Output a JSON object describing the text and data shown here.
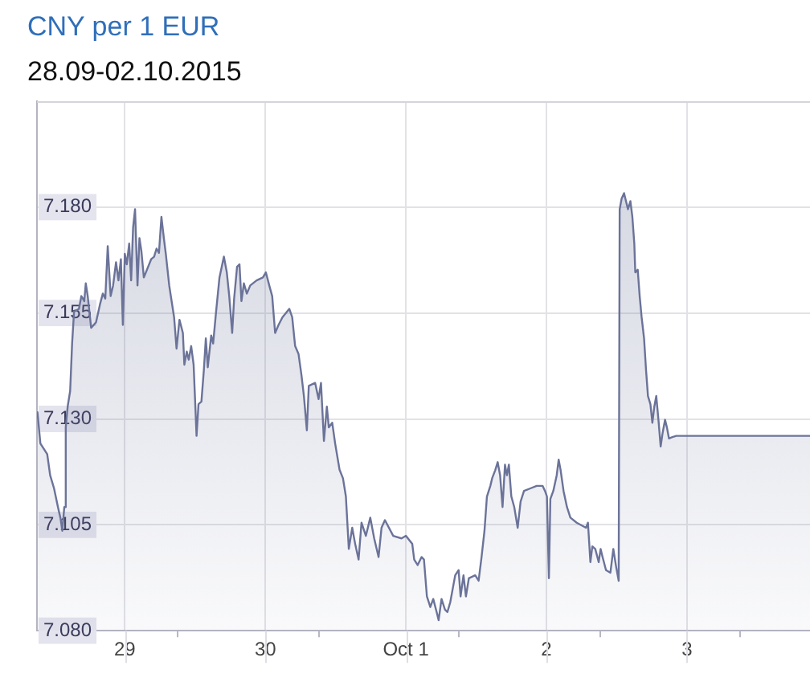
{
  "chart_data": {
    "type": "area",
    "title": "CNY per 1 EUR",
    "subtitle": "28.09-02.10.2015",
    "x": [
      "2015-09-28T09:05",
      "2015-09-28T09:35",
      "2015-09-28T10:45",
      "2015-09-28T11:15",
      "2015-09-28T11:55",
      "2015-09-28T12:35",
      "2015-09-28T13:00",
      "2015-09-28T13:20",
      "2015-09-28T13:40",
      "2015-09-28T13:55",
      "2015-09-28T14:15",
      "2015-09-28T14:40",
      "2015-09-28T15:00",
      "2015-09-28T15:20",
      "2015-09-28T16:10",
      "2015-09-28T16:35",
      "2015-09-28T17:05",
      "2015-09-28T17:20",
      "2015-09-28T17:40",
      "2015-09-28T18:15",
      "2015-09-28T19:05",
      "2015-09-28T19:45",
      "2015-09-28T20:15",
      "2015-09-28T20:40",
      "2015-09-28T21:05",
      "2015-09-28T21:35",
      "2015-09-28T22:00",
      "2015-09-28T22:30",
      "2015-09-28T22:55",
      "2015-09-28T23:20",
      "2015-09-28T23:40",
      "2015-09-29T00:00",
      "2015-09-29T00:20",
      "2015-09-29T00:45",
      "2015-09-29T01:05",
      "2015-09-29T01:25",
      "2015-09-29T01:45",
      "2015-09-29T02:10",
      "2015-09-29T02:30",
      "2015-09-29T02:50",
      "2015-09-29T03:15",
      "2015-09-29T04:30",
      "2015-09-29T05:00",
      "2015-09-29T05:25",
      "2015-09-29T05:50",
      "2015-09-29T06:15",
      "2015-09-29T06:40",
      "2015-09-29T07:00",
      "2015-09-29T07:35",
      "2015-09-29T08:25",
      "2015-09-29T08:50",
      "2015-09-29T09:20",
      "2015-09-29T09:55",
      "2015-09-29T10:10",
      "2015-09-29T10:35",
      "2015-09-29T10:55",
      "2015-09-29T11:20",
      "2015-09-29T11:45",
      "2015-09-29T12:15",
      "2015-09-29T12:35",
      "2015-09-29T13:05",
      "2015-09-29T13:30",
      "2015-09-29T13:50",
      "2015-09-29T14:10",
      "2015-09-29T14:45",
      "2015-09-29T15:05",
      "2015-09-29T15:35",
      "2015-09-29T16:10",
      "2015-09-29T16:55",
      "2015-09-29T17:25",
      "2015-09-29T17:50",
      "2015-09-29T18:20",
      "2015-09-29T18:40",
      "2015-09-29T19:10",
      "2015-09-29T19:35",
      "2015-09-29T19:55",
      "2015-09-29T20:20",
      "2015-09-29T20:50",
      "2015-09-29T21:25",
      "2015-09-29T22:30",
      "2015-09-29T23:35",
      "2015-09-30T00:05",
      "2015-09-30T00:40",
      "2015-09-30T01:10",
      "2015-09-30T01:40",
      "2015-09-30T02:15",
      "2015-09-30T02:55",
      "2015-09-30T04:05",
      "2015-09-30T04:35",
      "2015-09-30T05:05",
      "2015-09-30T05:40",
      "2015-09-30T06:10",
      "2015-09-30T06:35",
      "2015-09-30T07:05",
      "2015-09-30T07:25",
      "2015-09-30T08:30",
      "2015-09-30T09:05",
      "2015-09-30T09:30",
      "2015-09-30T10:00",
      "2015-09-30T10:30",
      "2015-09-30T10:50",
      "2015-09-30T11:25",
      "2015-09-30T11:55",
      "2015-09-30T12:40",
      "2015-09-30T13:15",
      "2015-09-30T13:45",
      "2015-09-30T14:15",
      "2015-09-30T14:50",
      "2015-09-30T15:20",
      "2015-09-30T15:55",
      "2015-09-30T16:25",
      "2015-09-30T17:10",
      "2015-09-30T17:55",
      "2015-09-30T18:35",
      "2015-09-30T19:20",
      "2015-09-30T19:50",
      "2015-09-30T20:25",
      "2015-09-30T21:50",
      "2015-09-30T23:15",
      "2015-10-01T00:00",
      "2015-10-01T01:05",
      "2015-10-01T01:25",
      "2015-10-01T02:00",
      "2015-10-01T02:40",
      "2015-10-01T03:05",
      "2015-10-01T03:35",
      "2015-10-01T04:10",
      "2015-10-01T04:40",
      "2015-10-01T05:15",
      "2015-10-01T05:35",
      "2015-10-01T06:05",
      "2015-10-01T06:40",
      "2015-10-01T07:05",
      "2015-10-01T07:35",
      "2015-10-01T08:25",
      "2015-10-01T09:00",
      "2015-10-01T09:20",
      "2015-10-01T09:50",
      "2015-10-01T10:15",
      "2015-10-01T10:45",
      "2015-10-01T11:50",
      "2015-10-01T12:25",
      "2015-10-01T12:55",
      "2015-10-01T13:25",
      "2015-10-01T13:50",
      "2015-10-01T14:25",
      "2015-10-01T14:45",
      "2015-10-01T15:15",
      "2015-10-01T15:40",
      "2015-10-01T16:05",
      "2015-10-01T16:30",
      "2015-10-01T16:55",
      "2015-10-01T17:15",
      "2015-10-01T17:35",
      "2015-10-01T18:00",
      "2015-10-01T18:30",
      "2015-10-01T19:05",
      "2015-10-01T19:35",
      "2015-10-01T20:10",
      "2015-10-01T21:15",
      "2015-10-01T22:20",
      "2015-10-01T23:20",
      "2015-10-01T23:45",
      "2015-10-02T00:05",
      "2015-10-02T00:25",
      "2015-10-02T00:40",
      "2015-10-02T01:10",
      "2015-10-02T01:45",
      "2015-10-02T02:05",
      "2015-10-02T02:25",
      "2015-10-02T02:55",
      "2015-10-02T03:30",
      "2015-10-02T04:05",
      "2015-10-02T05:10",
      "2015-10-02T06:45",
      "2015-10-02T07:05",
      "2015-10-02T07:30",
      "2015-10-02T07:50",
      "2015-10-02T08:20",
      "2015-10-02T08:55",
      "2015-10-02T09:15",
      "2015-10-02T09:35",
      "2015-10-02T10:10",
      "2015-10-02T10:55",
      "2015-10-02T11:25",
      "2015-10-02T11:55",
      "2015-10-02T12:20",
      "2015-10-02T12:30",
      "2015-10-02T12:50",
      "2015-10-02T13:15",
      "2015-10-02T13:35",
      "2015-10-02T13:55",
      "2015-10-02T14:20",
      "2015-10-02T14:40",
      "2015-10-02T15:00",
      "2015-10-02T15:10",
      "2015-10-02T15:35",
      "2015-10-02T15:55",
      "2015-10-02T16:15",
      "2015-10-02T16:40",
      "2015-10-02T17:00",
      "2015-10-02T17:20",
      "2015-10-02T17:45",
      "2015-10-02T18:05",
      "2015-10-02T18:25",
      "2015-10-02T18:45",
      "2015-10-02T19:10",
      "2015-10-02T19:30",
      "2015-10-02T19:50",
      "2015-10-02T20:15",
      "2015-10-02T20:35",
      "2015-10-02T20:55",
      "2015-10-02T21:30",
      "2015-10-02T22:10",
      "2015-10-03T21:00"
    ],
    "series": [
      {
        "color": "#6b7399",
        "values": [
          7.1316,
          7.1242,
          7.1217,
          7.1167,
          7.1136,
          7.1092,
          7.1067,
          7.1036,
          7.1092,
          7.128,
          7.133,
          7.1366,
          7.1478,
          7.1553,
          7.156,
          7.159,
          7.1578,
          7.162,
          7.159,
          7.1515,
          7.1528,
          7.157,
          7.1596,
          7.1584,
          7.1708,
          7.159,
          7.1615,
          7.167,
          7.1627,
          7.1677,
          7.1522,
          7.169,
          7.1665,
          7.1714,
          7.1627,
          7.1752,
          7.1795,
          7.1615,
          7.1727,
          7.1696,
          7.1634,
          7.1677,
          7.1683,
          7.1702,
          7.1692,
          7.1777,
          7.1727,
          7.169,
          7.1615,
          7.154,
          7.1466,
          7.1534,
          7.1503,
          7.1428,
          7.1459,
          7.144,
          7.1472,
          7.1428,
          7.126,
          7.1335,
          7.1341,
          7.1416,
          7.149,
          7.1422,
          7.1497,
          7.1478,
          7.1553,
          7.1634,
          7.1683,
          7.1646,
          7.159,
          7.1503,
          7.1584,
          7.1659,
          7.1665,
          7.1578,
          7.162,
          7.1596,
          7.1615,
          7.1627,
          7.1634,
          7.1646,
          7.1615,
          7.159,
          7.1503,
          7.1522,
          7.154,
          7.156,
          7.154,
          7.1472,
          7.1453,
          7.1403,
          7.1354,
          7.1273,
          7.1378,
          7.1385,
          7.1347,
          7.1385,
          7.1248,
          7.1329,
          7.128,
          7.1291,
          7.1242,
          7.118,
          7.116,
          7.1117,
          7.0993,
          7.1043,
          7.1005,
          7.0968,
          7.1055,
          7.1024,
          7.1067,
          7.1018,
          7.0974,
          7.1043,
          7.1061,
          7.1024,
          7.1018,
          7.1024,
          7.1005,
          7.0968,
          7.0955,
          7.0974,
          7.0968,
          7.0881,
          7.0856,
          7.0875,
          7.0844,
          7.0825,
          7.0875,
          7.085,
          7.0844,
          7.0868,
          7.0931,
          7.0943,
          7.0881,
          7.0931,
          7.0881,
          7.0924,
          7.0931,
          7.0918,
          7.0974,
          7.1036,
          7.1117,
          7.1142,
          7.1161,
          7.1179,
          7.1198,
          7.1167,
          7.1092,
          7.1192,
          7.1167,
          7.1192,
          7.1117,
          7.1092,
          7.1043,
          7.1105,
          7.113,
          7.1136,
          7.1142,
          7.1142,
          7.113,
          7.1117,
          7.0924,
          7.1111,
          7.113,
          7.1167,
          7.1204,
          7.1179,
          7.113,
          7.1092,
          7.1067,
          7.1055,
          7.1043,
          7.1055,
          7.0962,
          7.0999,
          7.0993,
          7.0962,
          7.0993,
          7.0974,
          7.0943,
          7.0937,
          7.0993,
          7.0949,
          7.0918,
          7.1795,
          7.182,
          7.1833,
          7.1814,
          7.1795,
          7.1814,
          7.1777,
          7.1714,
          7.1646,
          7.1652,
          7.159,
          7.154,
          7.149,
          7.1416,
          7.1354,
          7.1335,
          7.1291,
          7.1329,
          7.1354,
          7.1291,
          7.1235,
          7.1267,
          7.1298,
          7.1279,
          7.1254,
          7.1257,
          7.126,
          7.126
        ]
      }
    ],
    "xlim": [
      "2015-09-28T09:00",
      "2015-10-03T21:00"
    ],
    "xticks": [
      {
        "value": "2015-09-29",
        "label": "29"
      },
      {
        "value": "2015-09-29T09:00",
        "label": null
      },
      {
        "value": "2015-09-30",
        "label": "30"
      },
      {
        "value": "2015-09-30T09:00",
        "label": null
      },
      {
        "value": "2015-10-01",
        "label": "Oct 1"
      },
      {
        "value": "2015-10-01T09:00",
        "label": null
      },
      {
        "value": "2015-10-02",
        "label": "2"
      },
      {
        "value": "2015-10-02T09:00",
        "label": null
      },
      {
        "value": "2015-10-03",
        "label": "3"
      },
      {
        "value": "2015-10-03T09:00",
        "label": null
      }
    ],
    "ylim": [
      7.08,
      7.205
    ],
    "yticks": [
      {
        "value": 7.08,
        "label": "7.080"
      },
      7.105,
      {
        "value": 7.13,
        "label": "7.130"
      },
      7.155,
      {
        "value": 7.18,
        "label": "7.180"
      }
    ],
    "grid": true
  }
}
